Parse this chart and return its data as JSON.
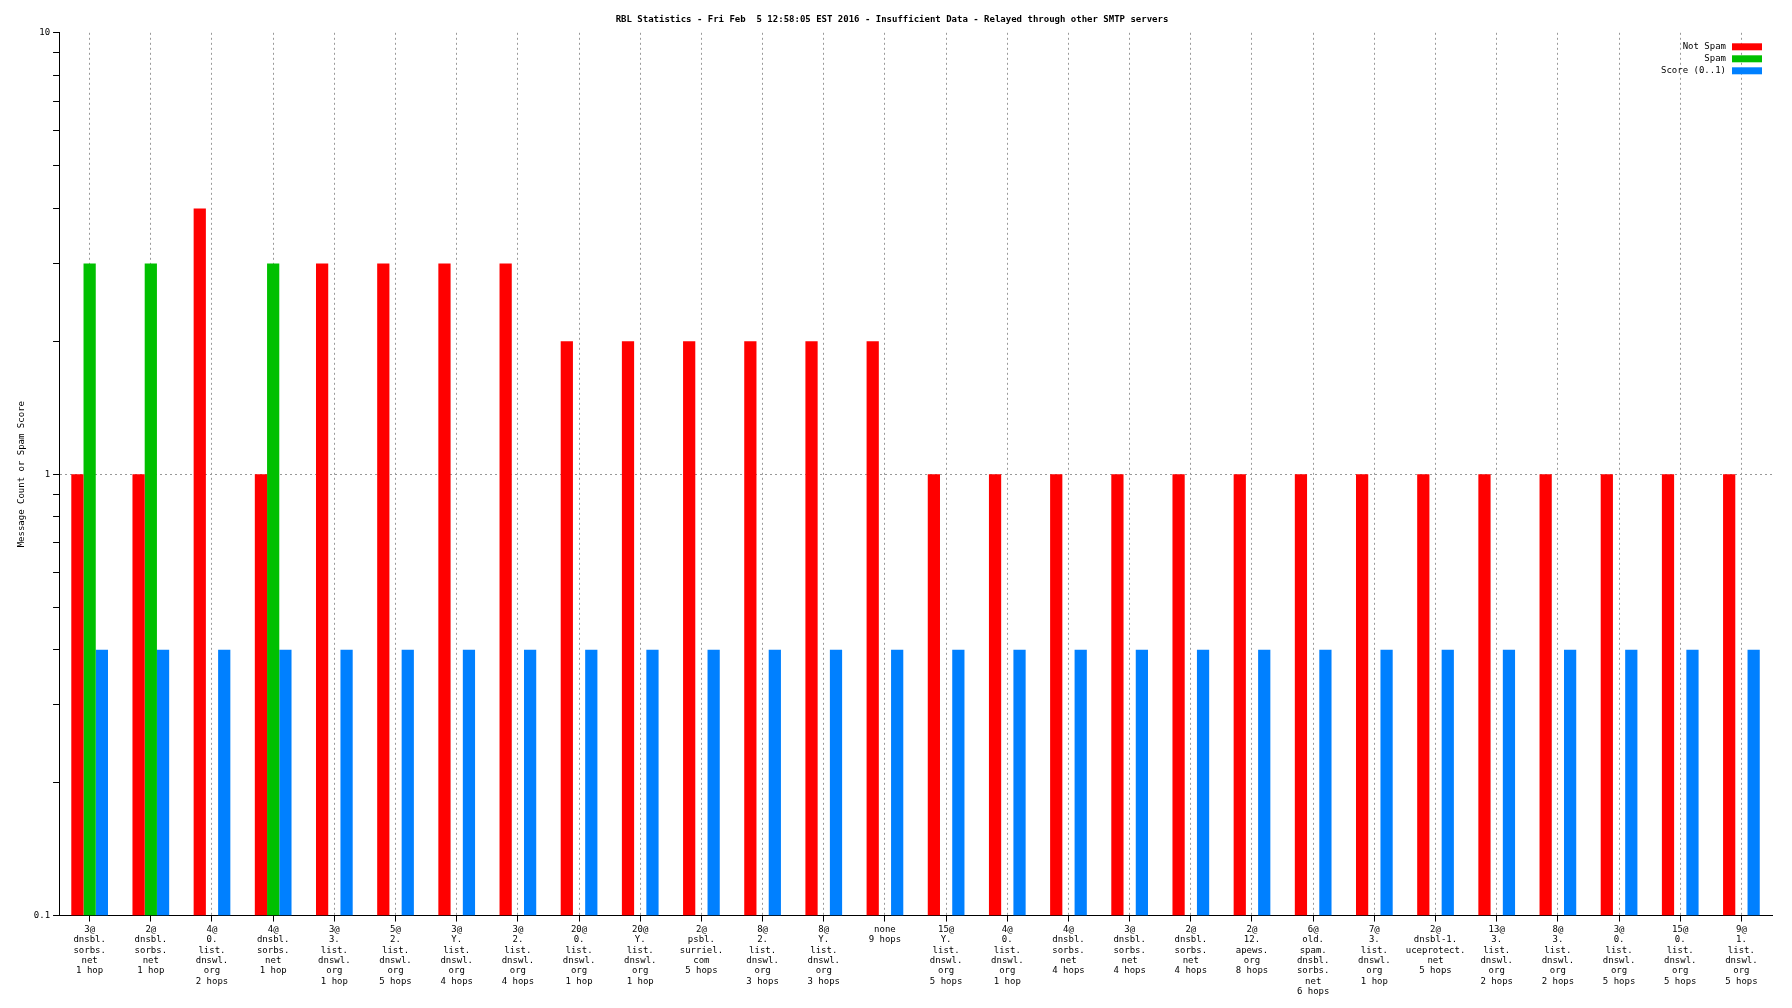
{
  "chart_data": {
    "type": "bar",
    "title": "RBL Statistics - Fri Feb  5 12:58:05 EST 2016 - Insufficient Data - Relayed through other SMTP servers",
    "ylabel": "Message Count or Spam Score",
    "categories": [
      "3@\ndnsbl.\nsorbs.\nnet\n1 hop",
      "2@\ndnsbl.\nsorbs.\nnet\n1 hop",
      "4@\n0.\nlist.\ndnswl.\norg\n2 hops",
      "4@\ndnsbl.\nsorbs.\nnet\n1 hop",
      "3@\n3.\nlist.\ndnswl.\norg\n1 hop",
      "5@\n2.\nlist.\ndnswl.\norg\n5 hops",
      "3@\nY.\nlist.\ndnswl.\norg\n4 hops",
      "3@\n2.\nlist.\ndnswl.\norg\n4 hops",
      "20@\n0.\nlist.\ndnswl.\norg\n1 hop",
      "20@\nY.\nlist.\ndnswl.\norg\n1 hop",
      "2@\npsbl.\nsurriel.\ncom\n5 hops",
      "8@\n2.\nlist.\ndnswl.\norg\n3 hops",
      "8@\nY.\nlist.\ndnswl.\norg\n3 hops",
      "none\n9 hops",
      "15@\nY.\nlist.\ndnswl.\norg\n5 hops",
      "4@\n0.\nlist.\ndnswl.\norg\n1 hop",
      "4@\ndnsbl.\nsorbs.\nnet\n4 hops",
      "3@\ndnsbl.\nsorbs.\nnet\n4 hops",
      "2@\ndnsbl.\nsorbs.\nnet\n4 hops",
      "2@\n12.\napews.\norg\n8 hops",
      "6@\nold.\nspam.\ndnsbl.\nsorbs.\nnet\n6 hops",
      "7@\n3.\nlist.\ndnswl.\norg\n1 hop",
      "2@\ndnsbl-1.\nuceprotect.\nnet\n5 hops",
      "13@\n3.\nlist.\ndnswl.\norg\n2 hops",
      "8@\n3.\nlist.\ndnswl.\norg\n2 hops",
      "3@\n0.\nlist.\ndnswl.\norg\n5 hops",
      "15@\n0.\nlist.\ndnswl.\norg\n5 hops",
      "9@\n1.\nlist.\ndnswl.\norg\n5 hops"
    ],
    "series": [
      {
        "name": "Not Spam",
        "color": "#ff0000",
        "values": [
          1,
          1,
          4,
          1,
          3,
          3,
          3,
          3,
          2,
          2,
          2,
          2,
          2,
          2,
          1,
          1,
          1,
          1,
          1,
          1,
          1,
          1,
          1,
          1,
          1,
          1,
          1,
          1
        ]
      },
      {
        "name": "Spam",
        "color": "#00c000",
        "values": [
          3,
          3,
          null,
          3,
          null,
          null,
          null,
          null,
          null,
          null,
          null,
          null,
          null,
          null,
          null,
          null,
          null,
          null,
          null,
          null,
          null,
          null,
          null,
          null,
          null,
          null,
          null,
          null
        ]
      },
      {
        "name": "Score (0..1)",
        "color": "#0080ff",
        "values": [
          0.4,
          0.4,
          0.4,
          0.4,
          0.4,
          0.4,
          0.4,
          0.4,
          0.4,
          0.4,
          0.4,
          0.4,
          0.4,
          0.4,
          0.4,
          0.4,
          0.4,
          0.4,
          0.4,
          0.4,
          0.4,
          0.4,
          0.4,
          0.4,
          0.4,
          0.4,
          0.4,
          0.4
        ]
      }
    ],
    "log": "y",
    "ylim": [
      0.1,
      10
    ],
    "yticks": [
      0.1,
      {
        "value": 0.2,
        "label": null
      },
      {
        "value": 0.3,
        "label": null
      },
      {
        "value": 0.4,
        "label": null
      },
      {
        "value": 0.5,
        "label": null
      },
      {
        "value": 0.6,
        "label": null
      },
      {
        "value": 0.7,
        "label": null
      },
      {
        "value": 0.8,
        "label": null
      },
      {
        "value": 0.9,
        "label": null
      },
      1,
      {
        "value": 2,
        "label": null
      },
      {
        "value": 3,
        "label": null
      },
      {
        "value": 4,
        "label": null
      },
      {
        "value": 5,
        "label": null
      },
      {
        "value": 6,
        "label": null
      },
      {
        "value": 7,
        "label": null
      },
      {
        "value": 8,
        "label": null
      },
      {
        "value": 9,
        "label": null
      },
      10
    ],
    "grid": true,
    "legend": "top right"
  }
}
